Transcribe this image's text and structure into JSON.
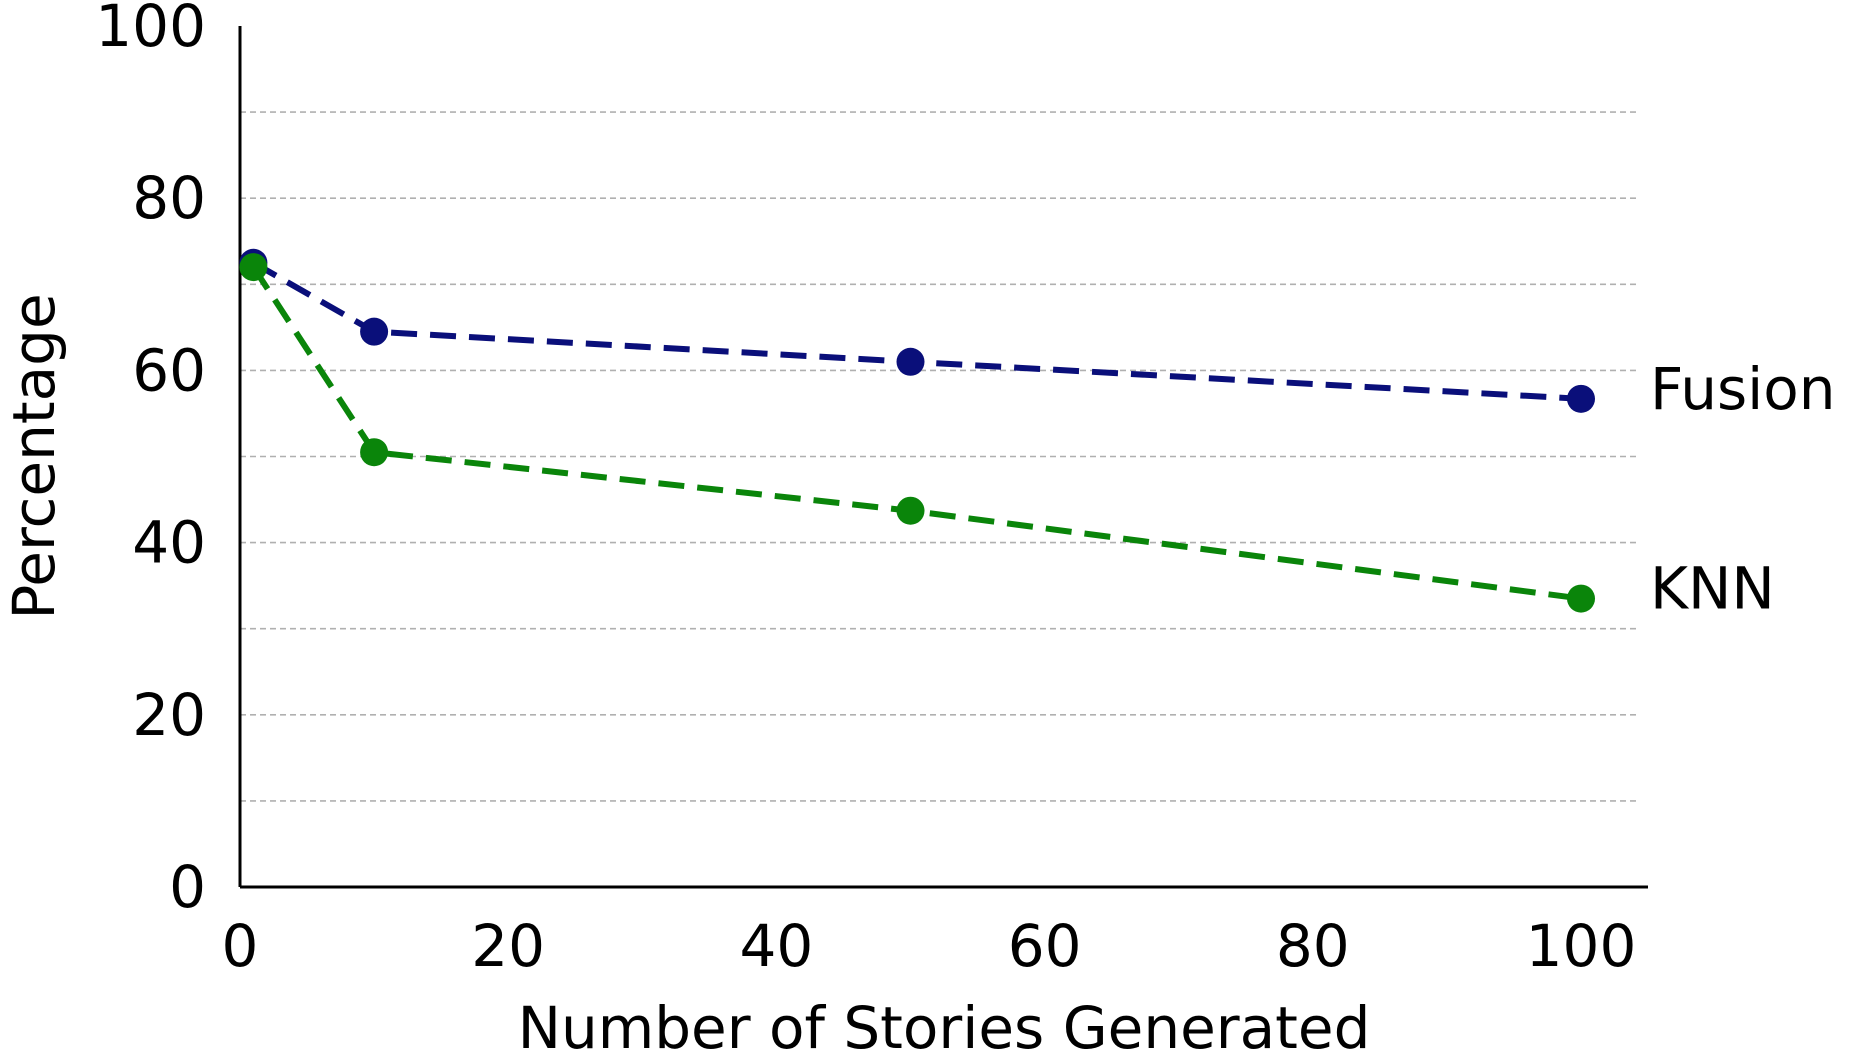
{
  "chart_data": {
    "type": "line",
    "title": "",
    "xlabel": "Number of Stories Generated",
    "ylabel": "Percentage",
    "xlim": [
      0,
      105
    ],
    "ylim": [
      0,
      100
    ],
    "xticks": [
      0,
      20,
      40,
      60,
      80,
      100
    ],
    "xtick_labels": [
      "0",
      "20",
      "40",
      "60",
      "80",
      "100"
    ],
    "yticks": [
      0,
      20,
      40,
      60,
      80,
      100
    ],
    "ytick_labels": [
      "0",
      "20",
      "40",
      "60",
      "80",
      "100"
    ],
    "grid": {
      "axis": "y",
      "style": "dashed",
      "color": "#b0b0b0",
      "lines_at": [
        10,
        20,
        30,
        40,
        50,
        60,
        70,
        80,
        90
      ]
    },
    "legend": "inline labels at right end of each line",
    "series": [
      {
        "name": "Fusion",
        "color": "#0a0f7a",
        "line_style": "dashed",
        "marker": "circle",
        "x": [
          1,
          10,
          50,
          100
        ],
        "y": [
          72.5,
          64.5,
          61,
          56.7
        ]
      },
      {
        "name": "KNN",
        "color": "#0a850a",
        "line_style": "dashed",
        "marker": "circle",
        "x": [
          1,
          10,
          50,
          100
        ],
        "y": [
          72,
          50.5,
          43.7,
          33.5
        ]
      }
    ]
  }
}
